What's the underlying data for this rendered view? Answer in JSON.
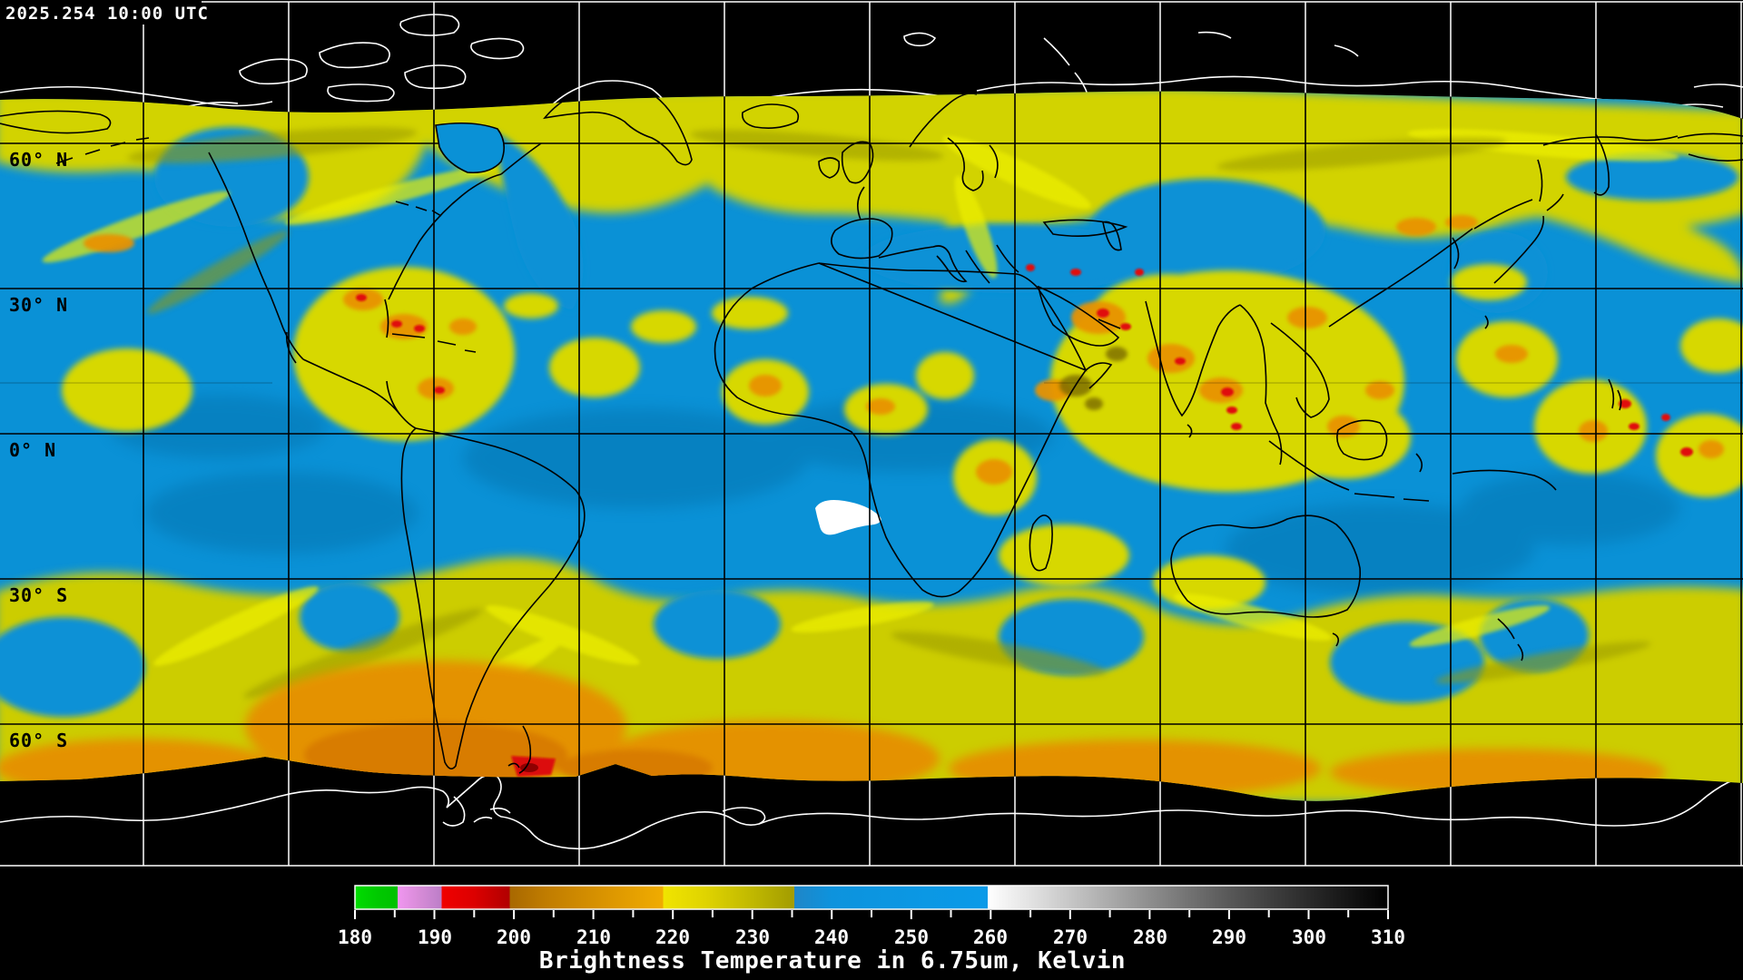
{
  "header": {
    "timestamp": "2025.254 10:00 UTC"
  },
  "map": {
    "description": "Global geostationary satellite water vapor composite, equirectangular projection",
    "latitude_labels": [
      {
        "text": "60° N"
      },
      {
        "text": "30° N"
      },
      {
        "text": "0° N"
      },
      {
        "text": "30° S"
      },
      {
        "text": "60° S"
      }
    ],
    "colors": {
      "no_data": "#000000",
      "dry_clear_blue": "#0a91d6",
      "moist_cloud_yellow": "#d2d300",
      "cold_cloud_orange": "#e89300",
      "coldest_cloud_red": "#e01010",
      "overexposed_white": "#ffffff",
      "gridline_over_data": "#000000",
      "gridline_polar": "#ffffff",
      "coastline_over_data": "#000000",
      "coastline_polar": "#ffffff"
    }
  },
  "colorbar": {
    "title": "Brightness Temperature in 6.75um, Kelvin",
    "min": 180,
    "max": 310,
    "major_tick_step": 10,
    "minor_tick_step": 5,
    "tick_labels": [
      "180",
      "190",
      "200",
      "210",
      "220",
      "230",
      "240",
      "250",
      "260",
      "270",
      "280",
      "290",
      "300",
      "310"
    ],
    "palette": [
      [
        180,
        "#00dc00"
      ],
      [
        183,
        "#00c800"
      ],
      [
        185.4,
        "#00c000"
      ],
      [
        185.4,
        "#f096f0"
      ],
      [
        188,
        "#d88cd8"
      ],
      [
        190.9,
        "#bc7ec8"
      ],
      [
        190.9,
        "#f00000"
      ],
      [
        195,
        "#dc0000"
      ],
      [
        199.5,
        "#b00000"
      ],
      [
        199.5,
        "#a86800"
      ],
      [
        204,
        "#c07c00"
      ],
      [
        212,
        "#dc9600"
      ],
      [
        218.8,
        "#f0ac00"
      ],
      [
        218.8,
        "#f0e400"
      ],
      [
        224,
        "#e0d400"
      ],
      [
        230,
        "#c0b800"
      ],
      [
        235.3,
        "#a29c00"
      ],
      [
        235.3,
        "#1f86c8"
      ],
      [
        240,
        "#0d93dd"
      ],
      [
        250,
        "#0b97e3"
      ],
      [
        259.6,
        "#0a9ae8"
      ],
      [
        259.6,
        "#ffffff"
      ],
      [
        265,
        "#e2e2e2"
      ],
      [
        270,
        "#c6c6c6"
      ],
      [
        275,
        "#aaaaaa"
      ],
      [
        280,
        "#8e8e8e"
      ],
      [
        285,
        "#727272"
      ],
      [
        290,
        "#585858"
      ],
      [
        295,
        "#404040"
      ],
      [
        300,
        "#2a2a2a"
      ],
      [
        305,
        "#151515"
      ],
      [
        310,
        "#000000"
      ]
    ]
  }
}
